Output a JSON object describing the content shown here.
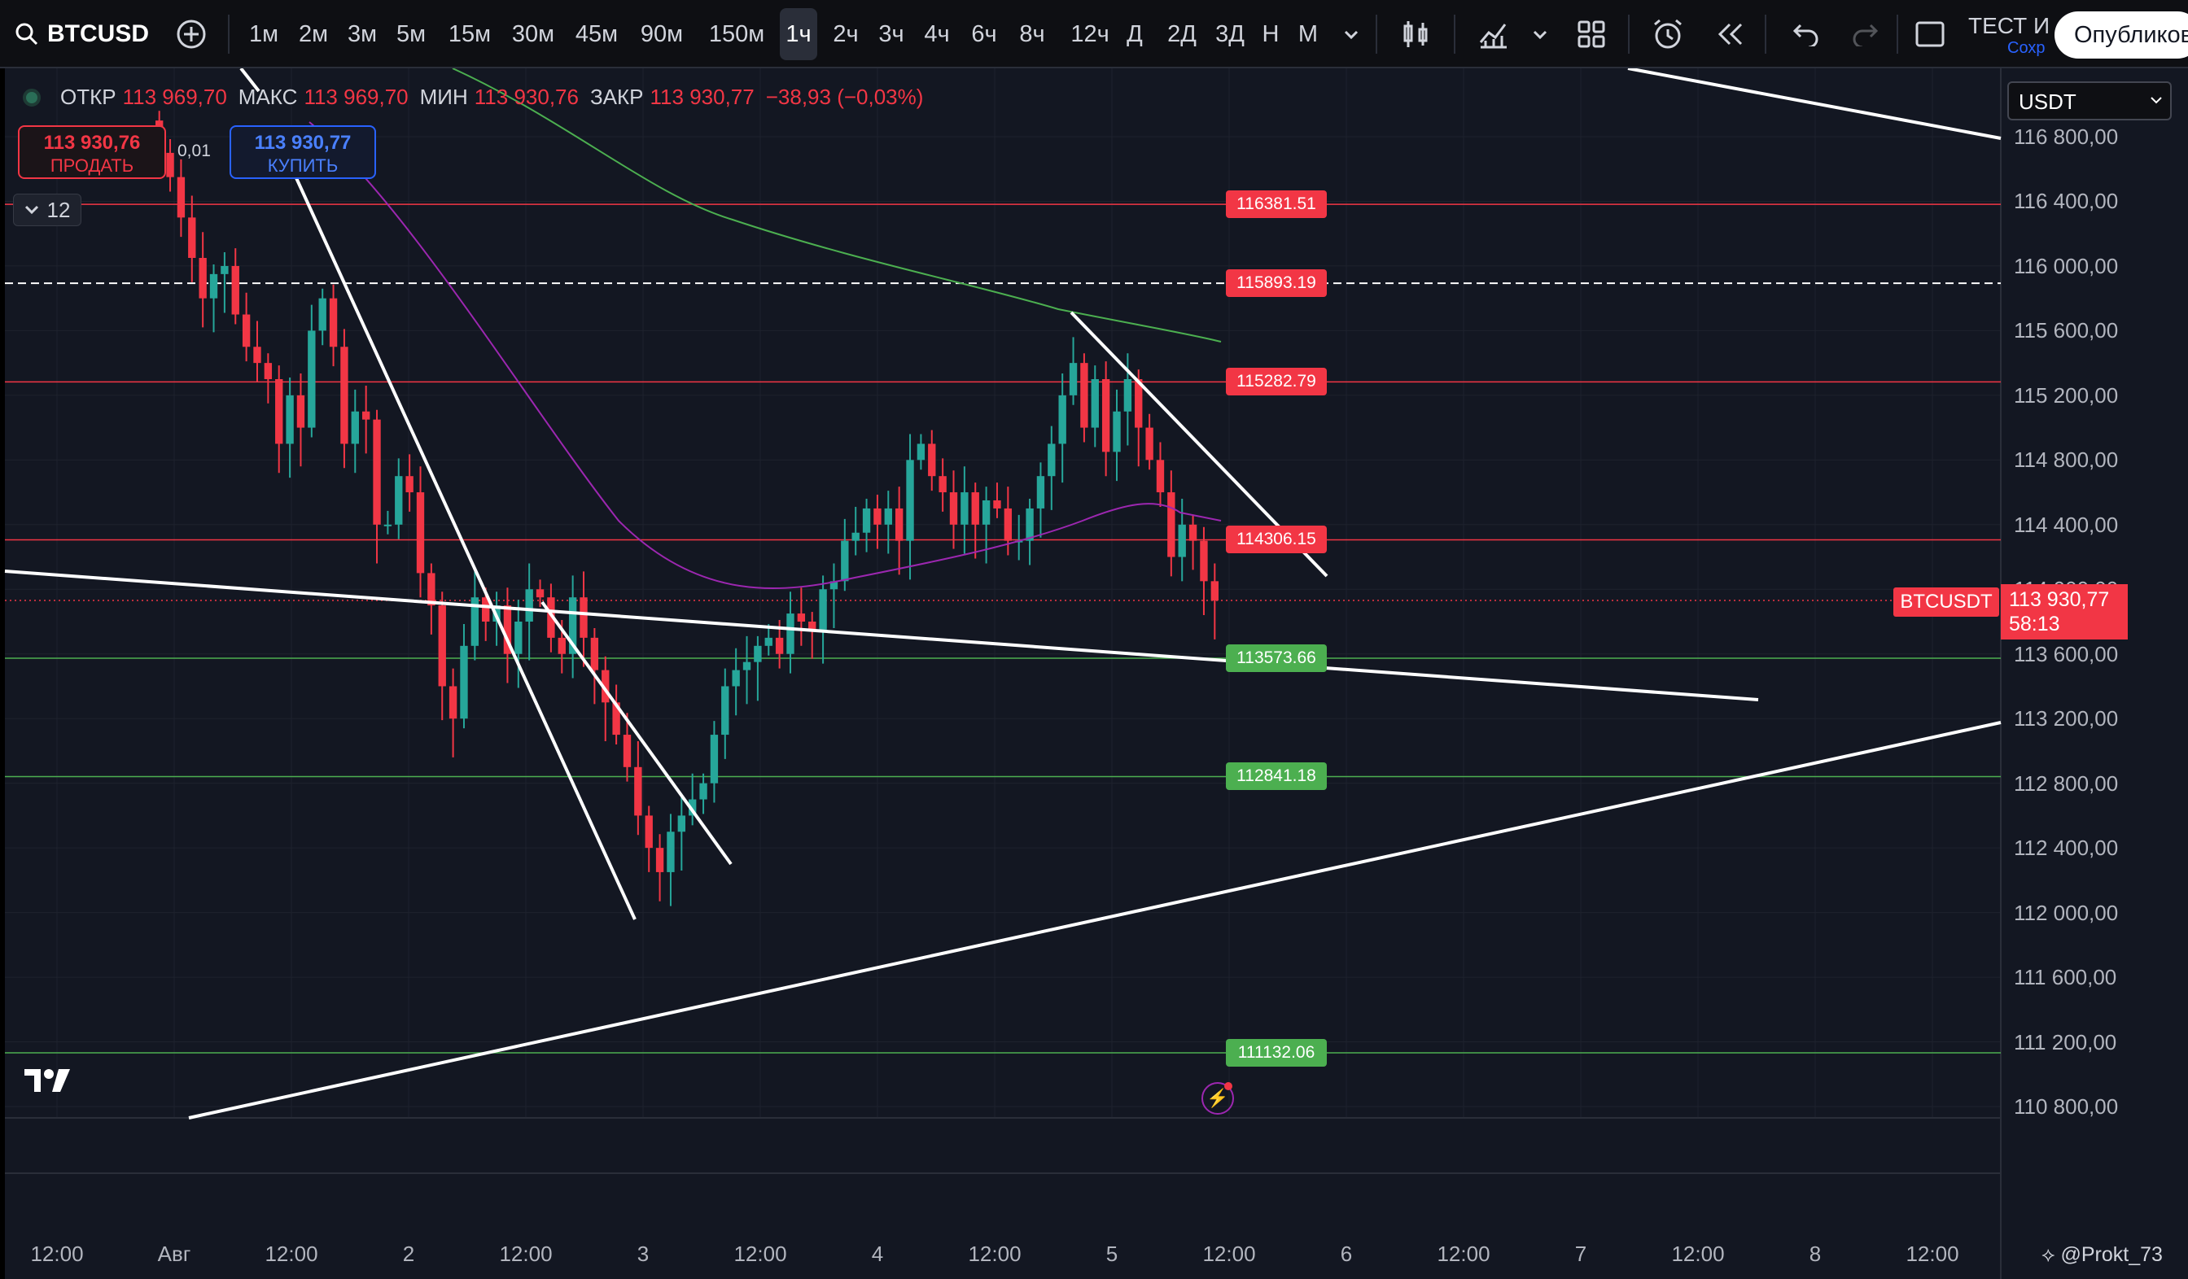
{
  "toolbar": {
    "symbol": "BTCUSD",
    "timeframes": [
      "1м",
      "2м",
      "3м",
      "5м",
      "15м",
      "30м",
      "45м",
      "90м",
      "150м",
      "1ч",
      "2ч",
      "3ч",
      "4ч",
      "6ч",
      "8ч",
      "12ч",
      "Д",
      "2Д",
      "3Д",
      "Н",
      "М"
    ],
    "active_timeframe": "1ч",
    "layout_name": "ТЕСТ И",
    "layout_status": "Сохр",
    "publish_label": "Опубликов"
  },
  "legend": {
    "open_label": "ОТКР",
    "open": "113 969,70",
    "high_label": "МАКС",
    "high": "113 969,70",
    "low_label": "МИН",
    "low": "113 930,76",
    "close_label": "ЗАКР",
    "close": "113 930,77",
    "change": "−38,93 (−0,03%)"
  },
  "trade": {
    "sell_price": "113 930,76",
    "sell_label": "ПРОДАТЬ",
    "spread": "0,01",
    "buy_price": "113 930,77",
    "buy_label": "КУПИТЬ",
    "collapse_count": "12"
  },
  "currency": "USDT",
  "price_axis": [
    "116 800,00",
    "116 400,00",
    "116 000,00",
    "115 600,00",
    "115 200,00",
    "114 800,00",
    "114 400,00",
    "114 000,00",
    "113 600,00",
    "113 200,00",
    "112 800,00",
    "112 400,00",
    "112 000,00",
    "111 600,00",
    "111 200,00",
    "110 800,00"
  ],
  "time_axis": [
    "12:00",
    "Авг",
    "12:00",
    "2",
    "12:00",
    "3",
    "12:00",
    "4",
    "12:00",
    "5",
    "12:00",
    "6",
    "12:00",
    "7",
    "12:00",
    "8",
    "12:00"
  ],
  "horizontal_levels": [
    {
      "value": "116381.51",
      "price": 116381.51,
      "kind": "resistance"
    },
    {
      "value": "115893.19",
      "price": 115893.19,
      "kind": "resistance-dashed"
    },
    {
      "value": "115282.79",
      "price": 115282.79,
      "kind": "resistance"
    },
    {
      "value": "114306.15",
      "price": 114306.15,
      "kind": "resistance"
    },
    {
      "value": "113573.66",
      "price": 113573.66,
      "kind": "support"
    },
    {
      "value": "112841.18",
      "price": 112841.18,
      "kind": "support"
    },
    {
      "value": "111132.06",
      "price": 111132.06,
      "kind": "support"
    }
  ],
  "last_price": {
    "symbol": "BTCUSDT",
    "price": "113 930,77",
    "countdown": "58:13"
  },
  "watermark_user": "@Prokt_73",
  "colors": {
    "up": "#26a69a",
    "down": "#f23645",
    "bg": "#131722"
  },
  "chart_data": {
    "type": "candlestick",
    "timeframe": "1h",
    "y_range": [
      110700,
      117100
    ],
    "candles_close": [
      116700,
      116550,
      116300,
      116050,
      115800,
      115950,
      116000,
      115700,
      115500,
      115400,
      115300,
      114900,
      115200,
      115000,
      115600,
      115800,
      115500,
      114900,
      115100,
      115050,
      114400,
      114400,
      114700,
      114600,
      114100,
      113900,
      113400,
      113200,
      113650,
      113950,
      113800,
      113900,
      113600,
      113800,
      114000,
      113950,
      113700,
      113600,
      113950,
      113700,
      113500,
      113300,
      113100,
      112900,
      112600,
      112400,
      112250,
      112500,
      112600,
      112700,
      112800,
      113100,
      113400,
      113500,
      113550,
      113650,
      113700,
      113600,
      113850,
      113800,
      113750,
      114000,
      114050,
      114300,
      114350,
      114500,
      114400,
      114500,
      114300,
      114800,
      114900,
      114700,
      114600,
      114400,
      114600,
      114400,
      114550,
      114500,
      114300,
      114300,
      114500,
      114700,
      114900,
      115200,
      115400,
      115000,
      115300,
      114850,
      115100,
      115300,
      115000,
      114800,
      114600,
      114200,
      114400,
      114300,
      114050,
      113930
    ]
  }
}
